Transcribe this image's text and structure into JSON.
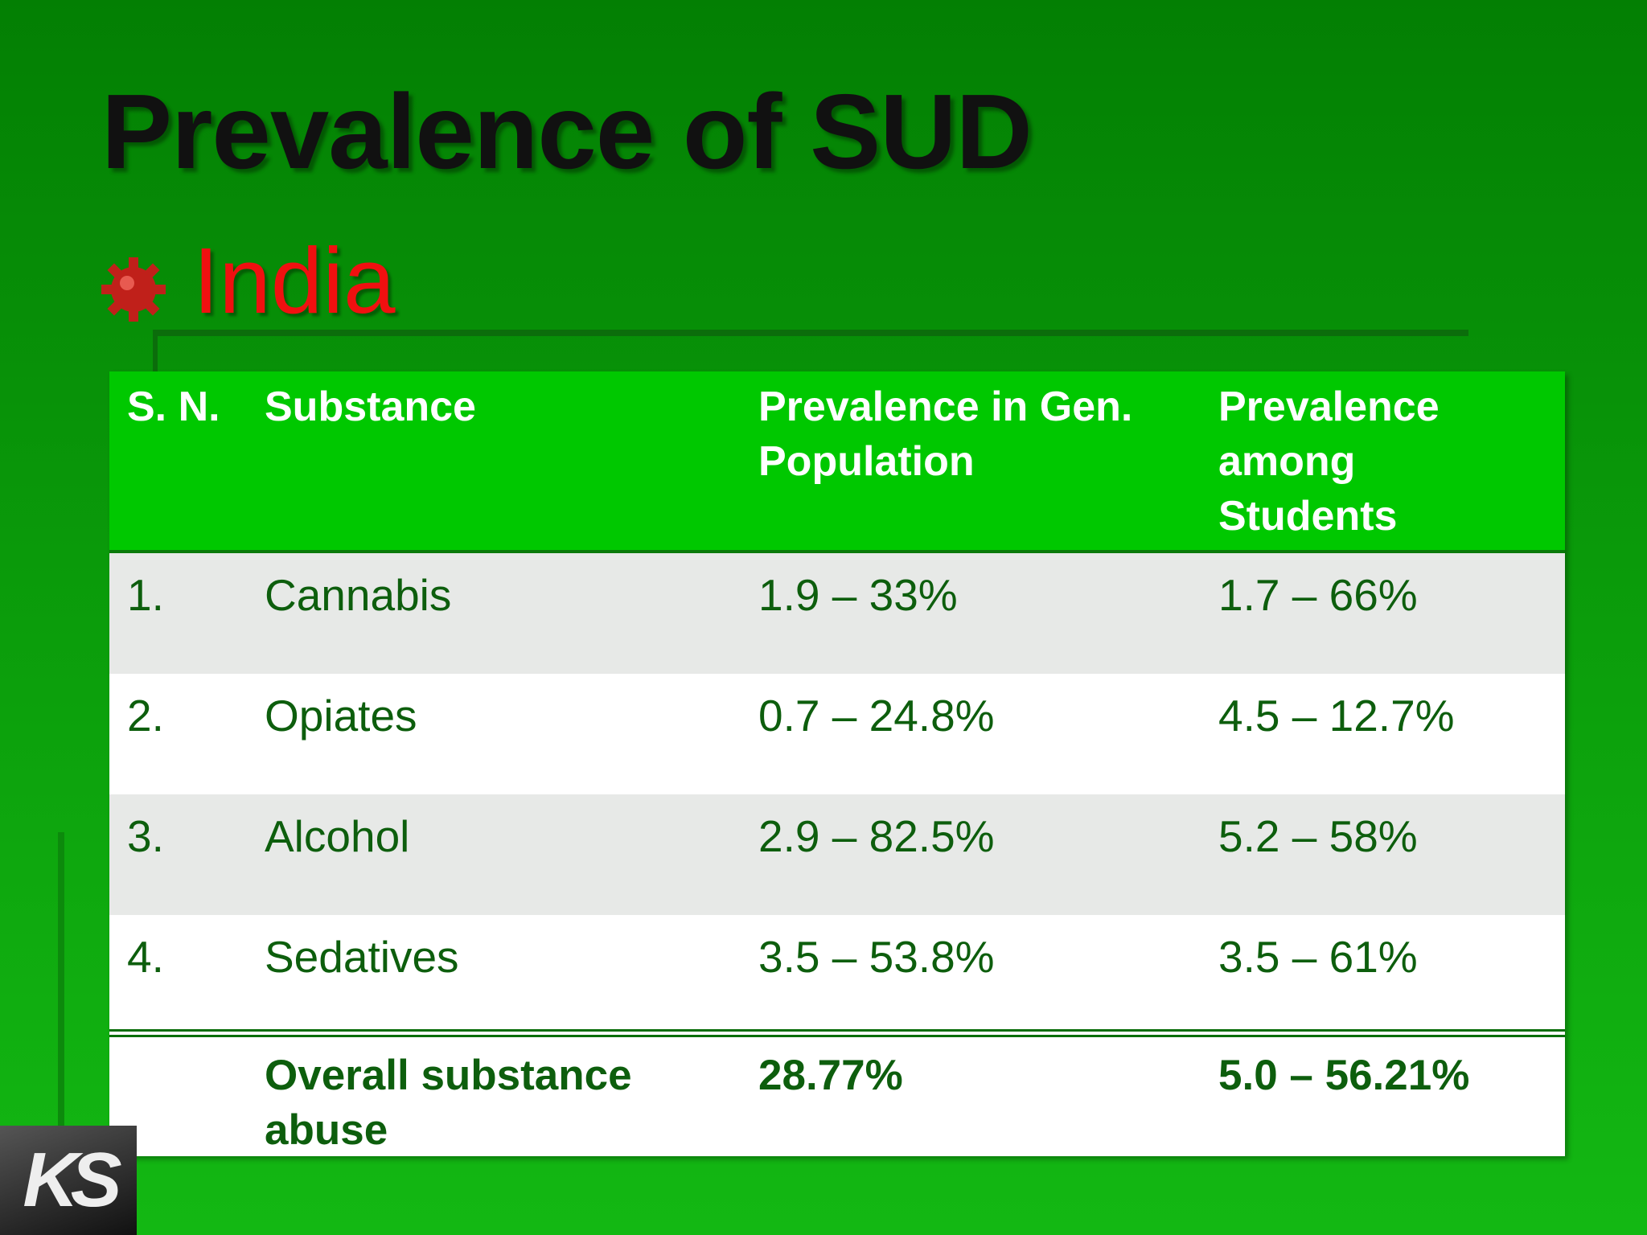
{
  "title": "Prevalence of SUD",
  "subtitle": "India",
  "table": {
    "header": [
      "S. N.",
      "Substance",
      "Prevalence in Gen. Population",
      "Prevalence among Students"
    ],
    "rows": [
      [
        "1.",
        "Cannabis",
        "1.9 – 33%",
        "1.7 – 66%"
      ],
      [
        "2.",
        "Opiates",
        "0.7 – 24.8%",
        "4.5 – 12.7%"
      ],
      [
        "3.",
        "Alcohol",
        "2.9 – 82.5%",
        "5.2 – 58%"
      ],
      [
        "4.",
        "Sedatives",
        "3.5 – 53.8%",
        "3.5 – 61%"
      ]
    ],
    "total": {
      "label": "Overall substance abuse",
      "general": "28.77%",
      "students": "5.0 – 56.21%"
    }
  },
  "logo": "KS"
}
